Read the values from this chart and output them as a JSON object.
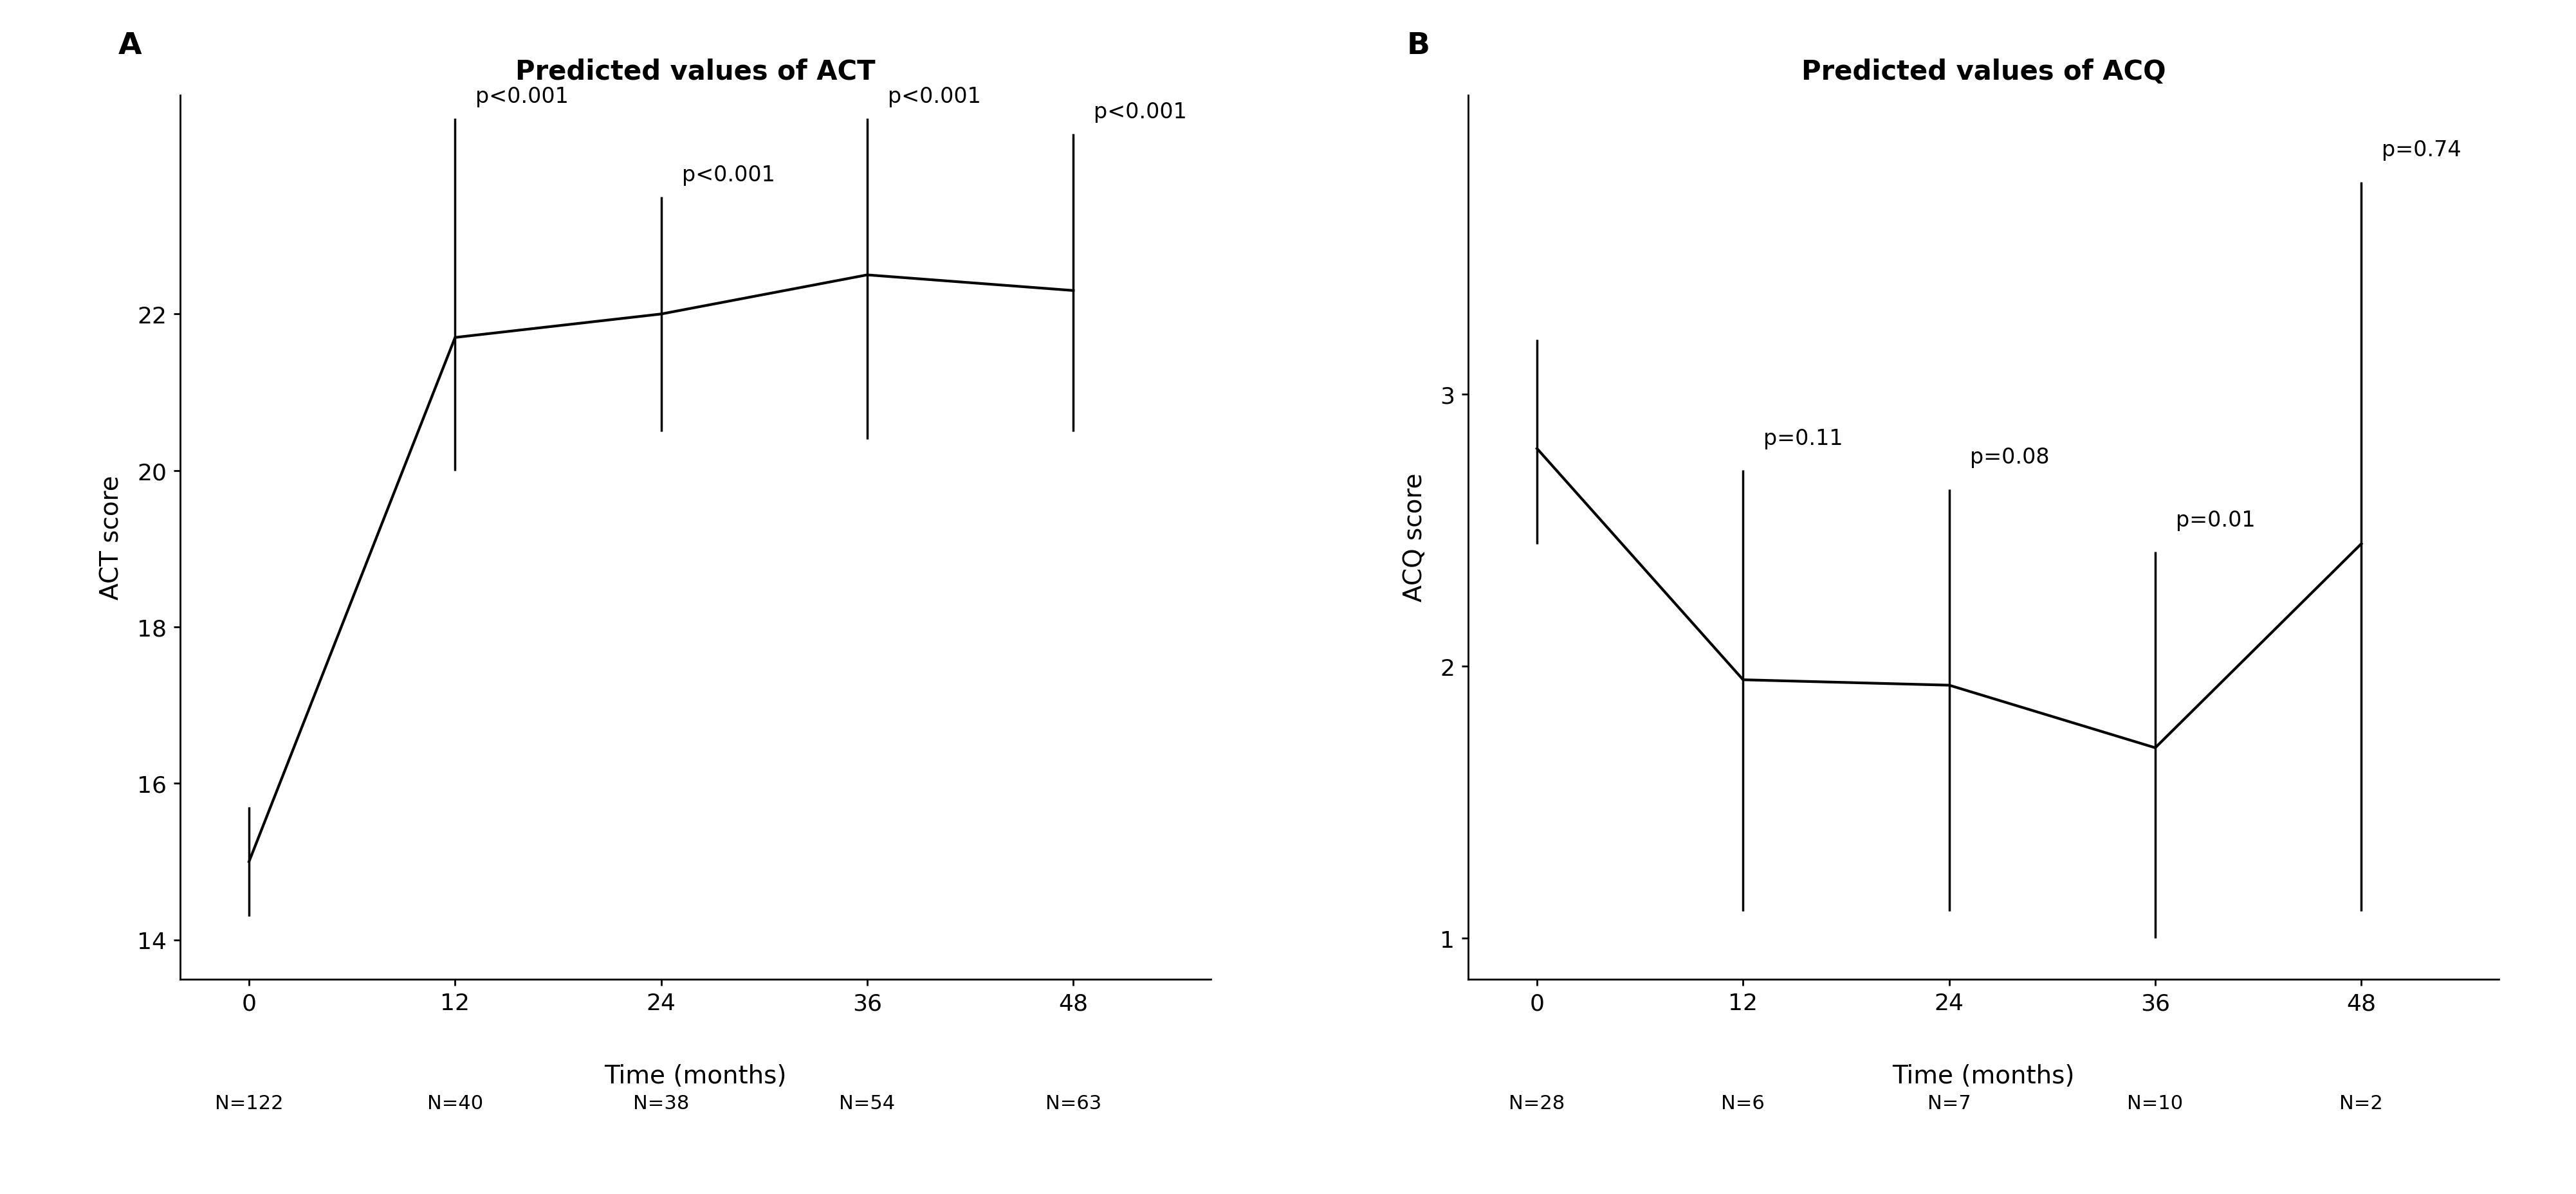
{
  "panel_A": {
    "title": "Predicted values of ACT",
    "xlabel": "Time (months)",
    "ylabel": "ACT score",
    "x": [
      0,
      12,
      24,
      36,
      48
    ],
    "y": [
      15.0,
      21.7,
      22.0,
      22.5,
      22.3
    ],
    "y_lower": [
      14.3,
      20.0,
      20.5,
      20.4,
      20.5
    ],
    "y_upper": [
      15.7,
      24.5,
      23.5,
      24.5,
      24.3
    ],
    "n_labels": [
      "N=122",
      "N=40",
      "N=38",
      "N=54",
      "N=63"
    ],
    "p_labels": [
      "",
      "p<0.001",
      "p<0.001",
      "p<0.001",
      "p<0.001"
    ],
    "p_label_offsets": [
      0,
      0.15,
      0.15,
      0.15,
      0.15
    ],
    "ylim": [
      13.5,
      24.8
    ],
    "yticks": [
      14,
      16,
      18,
      20,
      22
    ],
    "panel_label": "A"
  },
  "panel_B": {
    "title": "Predicted values of ACQ",
    "xlabel": "Time (months)",
    "ylabel": "ACQ score",
    "x": [
      0,
      12,
      24,
      36,
      48
    ],
    "y": [
      2.8,
      1.95,
      1.93,
      1.7,
      2.45
    ],
    "y_lower": [
      2.45,
      1.1,
      1.1,
      1.0,
      1.1
    ],
    "y_upper": [
      3.2,
      2.72,
      2.65,
      2.42,
      3.78
    ],
    "n_labels": [
      "N=28",
      "N=6",
      "N=7",
      "N=10",
      "N=2"
    ],
    "p_labels": [
      "",
      "p=0.11",
      "p=0.08",
      "p=0.01",
      "p=0.74"
    ],
    "p_label_offsets": [
      0,
      0.08,
      0.08,
      0.08,
      0.08
    ],
    "ylim": [
      0.85,
      4.1
    ],
    "yticks": [
      1,
      2,
      3
    ],
    "panel_label": "B"
  },
  "line_color": "#000000",
  "line_width": 3.0,
  "errorbar_linewidth": 2.5,
  "tick_fontsize": 26,
  "label_fontsize": 28,
  "title_fontsize": 30,
  "panel_label_fontsize": 34,
  "pvalue_fontsize": 24,
  "n_label_fontsize": 22,
  "background_color": "#ffffff"
}
